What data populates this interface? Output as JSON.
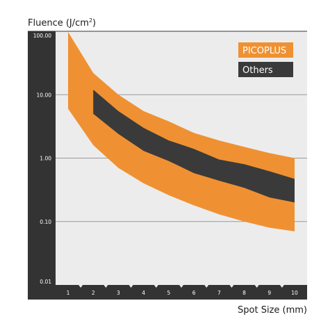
{
  "chart_data": {
    "type": "area",
    "ylabel": "Fluence (J/cm",
    "ylabel_sup": "2",
    "ylabel_close": ")",
    "xlabel": "Spot Size (mm)",
    "x": [
      1,
      2,
      3,
      4,
      5,
      6,
      7,
      8,
      9,
      10
    ],
    "x_tick_labels": [
      "1",
      "2",
      "3",
      "4",
      "5",
      "6",
      "7",
      "8",
      "9",
      "10"
    ],
    "y_scale": "log",
    "ylim": [
      0.01,
      100
    ],
    "y_tick_labels": [
      "100.00",
      "10.00",
      "1.00",
      "0.10",
      "0.01"
    ],
    "y_ticks": [
      100,
      10,
      1,
      0.1,
      0.01
    ],
    "grid": true,
    "legend_position": "top-right",
    "series": [
      {
        "name": "PICOPLUS",
        "color": "#ef9132",
        "x": [
          1,
          2,
          3,
          4,
          5,
          6,
          7,
          8,
          9,
          10
        ],
        "upper": [
          110,
          22,
          10,
          5.5,
          3.8,
          2.5,
          1.9,
          1.5,
          1.2,
          1.0
        ],
        "lower": [
          6.0,
          1.6,
          0.7,
          0.4,
          0.26,
          0.18,
          0.13,
          0.1,
          0.08,
          0.07
        ]
      },
      {
        "name": "Others",
        "color": "#3a3a3a",
        "x": [
          2,
          3,
          4,
          5,
          6,
          7,
          8,
          9,
          10
        ],
        "upper": [
          12,
          5.5,
          3.0,
          1.9,
          1.4,
          0.95,
          0.8,
          0.62,
          0.47
        ],
        "lower": [
          5.0,
          2.4,
          1.3,
          0.9,
          0.58,
          0.44,
          0.34,
          0.24,
          0.2
        ]
      }
    ]
  }
}
